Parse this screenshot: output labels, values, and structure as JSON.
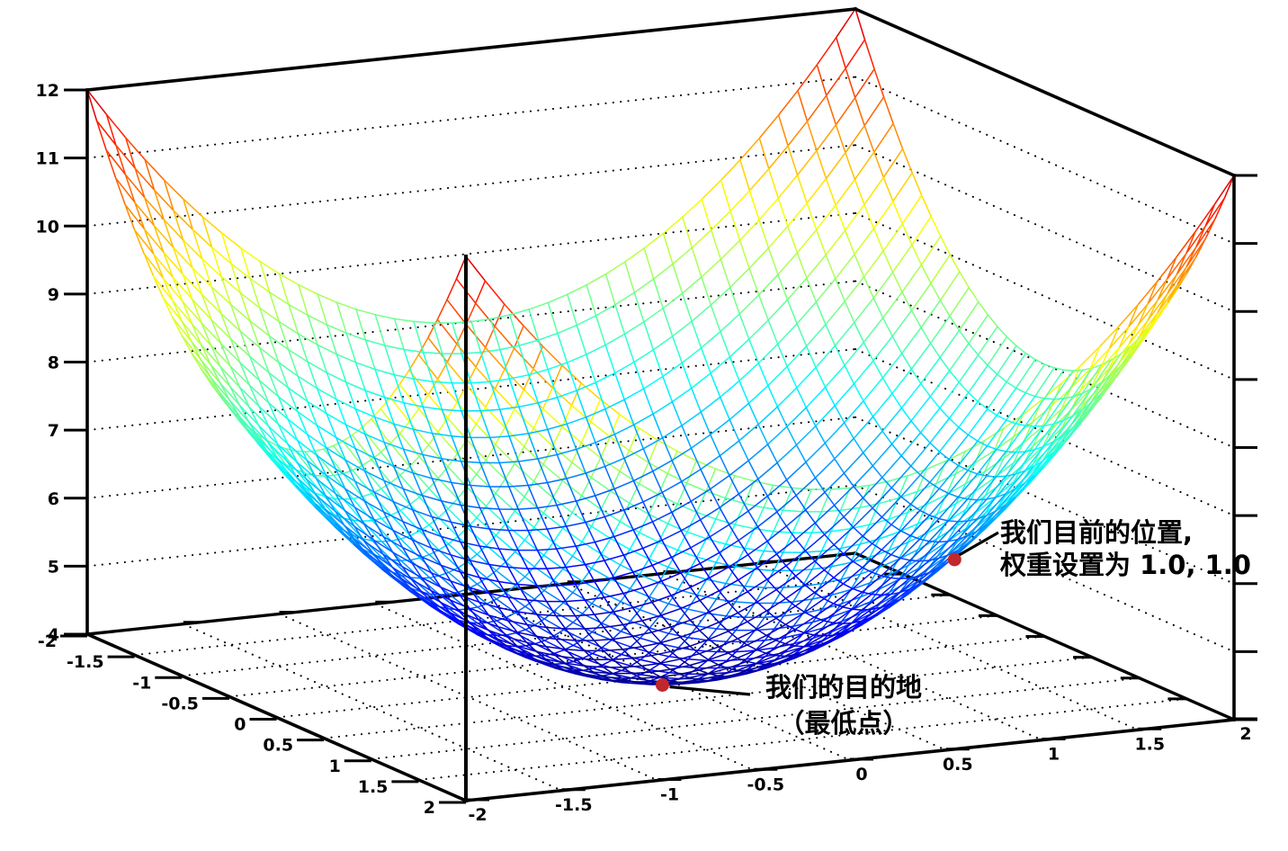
{
  "chart_data": {
    "type": "surface",
    "title": "",
    "surface": {
      "z_formula": "z = 4 + x^2 + y^2",
      "x_range": [
        -2,
        2
      ],
      "y_range": [
        -2,
        2
      ],
      "z_range": [
        4,
        12
      ],
      "mesh_step": 0.1,
      "colormap": "jet",
      "grid": true
    },
    "axes": {
      "x_ticks": [
        "-2",
        "-1.5",
        "-1",
        "-0.5",
        "0",
        "0.5",
        "1",
        "1.5",
        "2"
      ],
      "y_ticks": [
        "-2",
        "-1.5",
        "-1",
        "-0.5",
        "0",
        "0.5",
        "1",
        "1.5",
        "2"
      ],
      "z_ticks": [
        "4",
        "5",
        "6",
        "7",
        "8",
        "9",
        "10",
        "11",
        "12"
      ],
      "tick_step_xy": 0.5,
      "tick_step_z": 1
    },
    "colors": {
      "marker": "#c1272d",
      "axis": "#000000",
      "grid_dots": "#000000",
      "background": "#ffffff"
    },
    "points": [
      {
        "id": "current-position",
        "x": 1,
        "y": 1,
        "z": 6,
        "label_lines": [
          "我们目前的位置,",
          "权重设置为 1.0, 1.0"
        ]
      },
      {
        "id": "destination",
        "x": 0,
        "y": 0,
        "z": 4,
        "label_lines": [
          "我们的目的地",
          "（最低点）"
        ]
      }
    ]
  }
}
